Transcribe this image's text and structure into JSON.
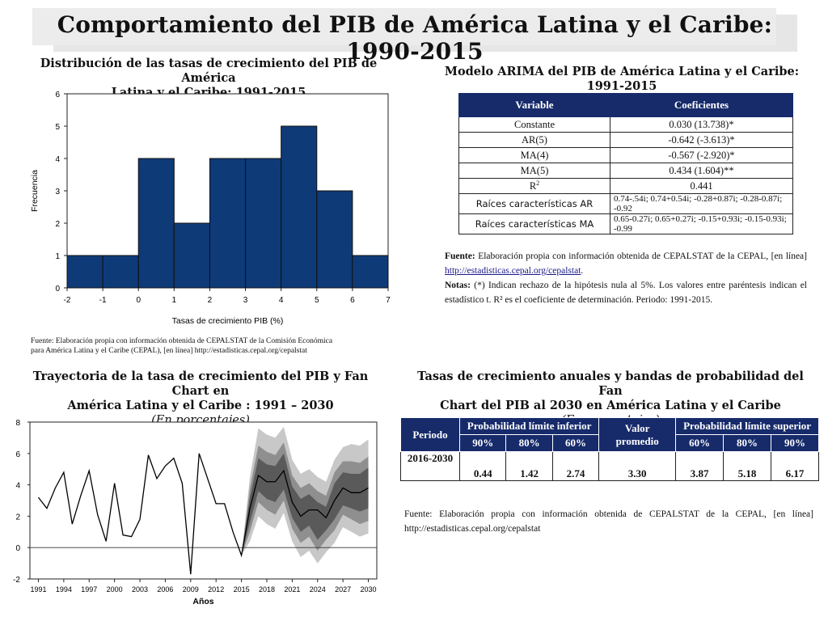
{
  "title": "Comportamiento del PIB de América Latina y el Caribe: 1990-2015",
  "histogram": {
    "title_line1": "Distribución de las tasas de crecimiento del PIB de América",
    "title_line2": "Latina y el Caribe: 1991-2015",
    "source_line1": "Fuente: Elaboración propia con información obtenida de CEPALSTAT de la Comisión Económica",
    "source_line2": "para América Latina y el Caribe (CEPAL), [en línea] http://estadisticas.cepal.org/cepalstat"
  },
  "arima": {
    "title": "Modelo ARIMA del PIB de América Latina y el Caribe: 1991-2015",
    "headers": [
      "Variable",
      "Coeficientes"
    ],
    "rows": [
      [
        "Constante",
        "0.030 (13.738)*"
      ],
      [
        "AR(5)",
        "-0.642 (-3.613)*"
      ],
      [
        "MA(4)",
        "-0.567 (-2.920)*"
      ],
      [
        "MA(5)",
        "0.434 (1.604)**"
      ],
      [
        "R2",
        "0.441"
      ]
    ],
    "roots_ar_label": "Raíces características AR",
    "roots_ar_value": "0.74-.54i;    0.74+0.54i;    -0.28+0.87i;    -0.28-0.87i; -0.92",
    "roots_ma_label": "Raíces características MA",
    "roots_ma_value": "0.65-0.27i;   0.65+0.27i;   -0.15+0.93i;   -0.15-0.93i; -0.99",
    "source_label": "Fuente:",
    "source_text": " Elaboración propia con información obtenida de CEPALSTAT de la CEPAL, [en línea] ",
    "source_link": "http://estadisticas.cepal.org/cepalstat",
    "notes_label": "Notas:",
    "notes_text": " (*) Indican rechazo de la hipótesis nula al 5%. Los valores entre paréntesis indican el estadístico t. R² es el coeficiente de determinación. Periodo: 1991-2015."
  },
  "fanchart": {
    "title_line1": "Trayectoria de la tasa de crecimiento del PIB y Fan Chart en",
    "title_line2": "América Latina y el Caribe : 1991 – 2030",
    "subtitle": "(En porcentajes)"
  },
  "fantable": {
    "title_line1": "Tasas de crecimiento anuales y bandas de probabilidad del Fan",
    "title_line2": "Chart del PIB al 2030 en América Latina y el Caribe",
    "subtitle": "(En porcentajes)",
    "h_periodo": "Periodo",
    "h_inferior": "Probabilidad límite inferior",
    "h_valor": "Valor promedio",
    "h_superior": "Probabilidad límite superior",
    "sub": [
      "90%",
      "80%",
      "60%",
      "60%",
      "80%",
      "90%"
    ],
    "row": [
      "2016-2030",
      "0.44",
      "1.42",
      "2.74",
      "3.30",
      "3.87",
      "5.18",
      "6.17"
    ],
    "source": "Fuente: Elaboración propia con información obtenida de CEPALSTAT de la CEPAL, [en línea] http://estadisticas.cepal.org/cepalstat"
  },
  "colors": {
    "navy": "#0e3a78",
    "header": "#172b6b"
  },
  "chart_data": [
    {
      "type": "bar",
      "categories": [
        "-2 a -1",
        "-1 a 0",
        "0 a 1",
        "1 a 2",
        "2 a 3",
        "3 a 4",
        "4 a 5",
        "5 a 6",
        "6 a 7"
      ],
      "bin_edges": [
        -2,
        -1,
        0,
        1,
        2,
        3,
        4,
        5,
        6,
        7
      ],
      "values": [
        1,
        1,
        4,
        2,
        4,
        4,
        5,
        3,
        1
      ],
      "xlabel": "Tasas de crecimiento PIB (%)",
      "ylabel": "Frecuencia",
      "xticks": [
        -2,
        -1,
        0,
        1,
        2,
        3,
        4,
        5,
        6,
        7
      ],
      "yticks": [
        0,
        1,
        2,
        3,
        4,
        5,
        6
      ],
      "ylim": [
        0,
        6
      ],
      "xlim": [
        -2,
        7
      ]
    },
    {
      "type": "line",
      "xlabel": "Años",
      "xticks": [
        1991,
        1994,
        1997,
        2000,
        2003,
        2006,
        2009,
        2012,
        2015,
        2018,
        2021,
        2024,
        2027,
        2030
      ],
      "yticks": [
        -2,
        0,
        2,
        4,
        6,
        8
      ],
      "ylim": [
        -2,
        8
      ],
      "xlim": [
        1990,
        2031
      ],
      "x": [
        1991,
        1992,
        1993,
        1994,
        1995,
        1996,
        1997,
        1998,
        1999,
        2000,
        2001,
        2002,
        2003,
        2004,
        2005,
        2006,
        2007,
        2008,
        2009,
        2010,
        2011,
        2012,
        2013,
        2014,
        2015,
        2016,
        2017,
        2018,
        2019,
        2020,
        2021,
        2022,
        2023,
        2024,
        2025,
        2026,
        2027,
        2028,
        2029,
        2030
      ],
      "y": [
        3.2,
        2.5,
        3.8,
        4.8,
        1.5,
        3.3,
        4.9,
        2.1,
        0.4,
        4.1,
        0.8,
        0.7,
        1.8,
        5.9,
        4.4,
        5.2,
        5.7,
        4.1,
        -1.7,
        6.0,
        4.4,
        2.8,
        2.8,
        1.0,
        -0.5,
        2.5,
        4.6,
        4.2,
        4.2,
        4.9,
        2.9,
        2.0,
        2.4,
        2.4,
        1.9,
        3.0,
        3.8,
        3.5,
        3.5,
        3.8
      ],
      "fan_x": [
        2015,
        2016,
        2017,
        2018,
        2019,
        2020,
        2021,
        2022,
        2023,
        2024,
        2025,
        2026,
        2027,
        2028,
        2029,
        2030
      ],
      "band90_low": [
        -0.5,
        0.4,
        2.0,
        1.5,
        1.2,
        2.2,
        0.4,
        -0.6,
        -0.2,
        -1.0,
        -0.3,
        0.3,
        1.3,
        1.0,
        0.7,
        0.9
      ],
      "band90_high": [
        -0.5,
        4.5,
        7.6,
        7.2,
        7.0,
        7.7,
        5.6,
        4.7,
        5.0,
        4.5,
        4.2,
        5.6,
        6.4,
        6.6,
        6.5,
        6.9
      ],
      "band80_low": [
        -0.5,
        1.0,
        2.9,
        2.4,
        2.1,
        3.0,
        1.2,
        0.3,
        0.7,
        -0.2,
        0.5,
        1.1,
        2.1,
        1.8,
        1.5,
        1.7
      ],
      "band80_high": [
        -0.5,
        3.8,
        6.5,
        6.1,
        5.9,
        6.7,
        4.6,
        3.8,
        4.1,
        3.6,
        3.3,
        4.8,
        5.5,
        5.5,
        5.4,
        5.8
      ],
      "band60_low": [
        -0.5,
        1.6,
        3.6,
        3.1,
        2.9,
        3.7,
        1.9,
        1.0,
        1.4,
        0.5,
        1.1,
        1.8,
        2.7,
        2.5,
        2.3,
        2.5
      ],
      "band60_high": [
        -0.5,
        3.2,
        5.7,
        5.3,
        5.2,
        6.0,
        3.9,
        3.1,
        3.4,
        2.9,
        2.6,
        4.1,
        4.8,
        4.7,
        4.7,
        5.1
      ]
    }
  ]
}
